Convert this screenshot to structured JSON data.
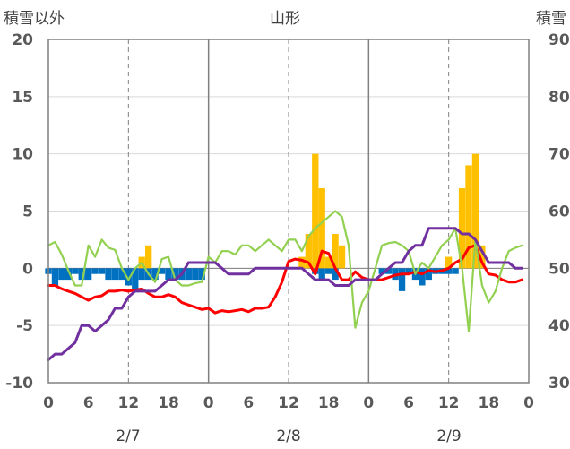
{
  "chart_data": {
    "type": "bar",
    "title": "山形",
    "ylabel_left": "積雪以外",
    "ylabel_right": "積雪",
    "ylim_left": [
      -10,
      20
    ],
    "yticks_left": [
      "20",
      "15",
      "10",
      "5",
      "0",
      "-5",
      "-10"
    ],
    "ylim_right": [
      30,
      90
    ],
    "yticks_right": [
      "90",
      "80",
      "70",
      "60",
      "50",
      "40",
      "30"
    ],
    "xlim": [
      0,
      72
    ],
    "xticks": [
      "0",
      "6",
      "12",
      "18",
      "0",
      "6",
      "12",
      "18",
      "0",
      "6",
      "12",
      "18",
      "0"
    ],
    "dates": [
      "2/7",
      "2/8",
      "2/9"
    ],
    "grid": {
      "day_lines_solid": true,
      "hour12_lines_dashed": true
    },
    "colors": {
      "precip_bar": "#FFC000",
      "negative_bar": "#0070C0",
      "red_line": "#FF0000",
      "green_line": "#92D050",
      "purple_line": "#7030A0"
    },
    "precip_bars": {
      "x": [
        14,
        15,
        38,
        39,
        40,
        41,
        42,
        43,
        44,
        60,
        62,
        63,
        64,
        65
      ],
      "values": [
        1,
        2,
        1,
        3,
        10,
        7,
        1,
        3,
        2,
        1,
        7,
        9,
        10,
        2
      ]
    },
    "negative_bars": {
      "x": [
        0,
        1,
        2,
        3,
        4,
        5,
        6,
        7,
        8,
        9,
        10,
        11,
        12,
        13,
        14,
        15,
        16,
        17,
        18,
        19,
        20,
        21,
        22,
        23,
        40,
        41,
        42,
        43,
        50,
        51,
        52,
        53,
        54,
        55,
        56,
        57,
        58,
        59,
        60,
        61
      ],
      "values": [
        -0.5,
        -1.5,
        -1,
        -1,
        -0.5,
        -1,
        -1,
        -0.5,
        -0.5,
        -1,
        -1,
        -1,
        -1.5,
        -2,
        -1,
        -1,
        -1,
        -0.5,
        -1,
        -1,
        -1,
        -1,
        -1,
        -1,
        -0.5,
        -1,
        -0.5,
        -1,
        -0.5,
        -0.5,
        -1,
        -2,
        -0.5,
        -1,
        -1.5,
        -1,
        -0.5,
        -0.5,
        -0.5,
        -0.5
      ]
    },
    "series": [
      {
        "color": "#FF0000",
        "axis": "left",
        "x": [
          0,
          1,
          2,
          3,
          4,
          5,
          6,
          7,
          8,
          9,
          10,
          11,
          12,
          13,
          14,
          15,
          16,
          17,
          18,
          19,
          20,
          21,
          22,
          23,
          24,
          25,
          26,
          27,
          28,
          29,
          30,
          31,
          32,
          33,
          34,
          35,
          36,
          37,
          38,
          39,
          40,
          41,
          42,
          43,
          44,
          45,
          46,
          47,
          48,
          49,
          50,
          51,
          52,
          53,
          54,
          55,
          56,
          57,
          58,
          59,
          60,
          61,
          62,
          63,
          64,
          65,
          66,
          67,
          68,
          69,
          70,
          71
        ],
        "values": [
          -1.5,
          -1.5,
          -1.8,
          -2,
          -2.2,
          -2.5,
          -2.8,
          -2.5,
          -2.4,
          -2,
          -2,
          -1.9,
          -2,
          -1.9,
          -1.8,
          -2.2,
          -2.5,
          -2.5,
          -2.3,
          -2.5,
          -3,
          -3.2,
          -3.4,
          -3.6,
          -3.5,
          -3.9,
          -3.7,
          -3.8,
          -3.7,
          -3.6,
          -3.8,
          -3.5,
          -3.5,
          -3.4,
          -2.5,
          -1.2,
          0.6,
          0.8,
          0.7,
          0.5,
          -0.5,
          1.5,
          1.3,
          0,
          -1,
          -1,
          -0.3,
          -0.8,
          -1,
          -1,
          -1,
          -0.8,
          -0.6,
          -0.5,
          -0.5,
          -0.3,
          -0.5,
          -0.2,
          -0.3,
          -0.2,
          0,
          0.5,
          0.8,
          1.8,
          2,
          0.5,
          -0.5,
          -0.6,
          -1,
          -1.2,
          -1.2,
          -1
        ]
      },
      {
        "color": "#92D050",
        "axis": "left",
        "x": [
          0,
          1,
          2,
          3,
          4,
          5,
          6,
          7,
          8,
          9,
          10,
          11,
          12,
          13,
          14,
          15,
          16,
          17,
          18,
          19,
          20,
          21,
          22,
          23,
          24,
          25,
          26,
          27,
          28,
          29,
          30,
          31,
          32,
          33,
          34,
          35,
          36,
          37,
          38,
          39,
          40,
          41,
          42,
          43,
          44,
          45,
          46,
          47,
          48,
          49,
          50,
          51,
          52,
          53,
          54,
          55,
          56,
          57,
          58,
          59,
          60,
          61,
          62,
          63,
          64,
          65,
          66,
          67,
          68,
          69,
          70,
          71
        ],
        "values": [
          2,
          2.3,
          1.2,
          -0.2,
          -1.5,
          -1.5,
          2,
          1,
          2.5,
          1.8,
          1.6,
          0,
          -1,
          0,
          0.5,
          -0.5,
          -1.2,
          0.8,
          1,
          -1,
          -1.5,
          -1.5,
          -1.3,
          -1.2,
          1,
          0.5,
          1.5,
          1.5,
          1.2,
          2,
          2,
          1.5,
          2,
          2.5,
          2,
          1.5,
          2.5,
          2.5,
          1.5,
          2.8,
          3.5,
          4,
          4.5,
          5,
          4.5,
          2,
          -5.2,
          -3,
          -2,
          0,
          2,
          2.2,
          2.3,
          2,
          1.5,
          -0.5,
          0.5,
          0,
          1,
          2,
          2.5,
          3.5,
          0,
          -5.5,
          2.5,
          -1.5,
          -3,
          -2,
          0,
          1.5,
          1.8,
          2
        ]
      },
      {
        "color": "#7030A0",
        "axis": "right",
        "x": [
          0,
          1,
          2,
          3,
          4,
          5,
          6,
          7,
          8,
          9,
          10,
          11,
          12,
          13,
          14,
          15,
          16,
          17,
          18,
          19,
          20,
          21,
          22,
          23,
          24,
          25,
          26,
          27,
          28,
          29,
          30,
          31,
          32,
          33,
          34,
          35,
          36,
          37,
          38,
          39,
          40,
          41,
          42,
          43,
          44,
          45,
          46,
          47,
          48,
          49,
          50,
          51,
          52,
          53,
          54,
          55,
          56,
          57,
          58,
          59,
          60,
          61,
          62,
          63,
          64,
          65,
          66,
          67,
          68,
          69,
          70,
          71
        ],
        "values": [
          34,
          35,
          35,
          36,
          37,
          40,
          40,
          39,
          40,
          41,
          43,
          43,
          45,
          46,
          46,
          46,
          46,
          47,
          48,
          48,
          49,
          51,
          51,
          51,
          51,
          51,
          50,
          49,
          49,
          49,
          49,
          50,
          50,
          50,
          50,
          50,
          50,
          50,
          50,
          49,
          48,
          48,
          48,
          47,
          47,
          47,
          48,
          48,
          48,
          48,
          49,
          50,
          51,
          51,
          53,
          54,
          54,
          57,
          57,
          57,
          57,
          57,
          56,
          56,
          55,
          53,
          51,
          51,
          51,
          51,
          50,
          50
        ]
      }
    ]
  }
}
